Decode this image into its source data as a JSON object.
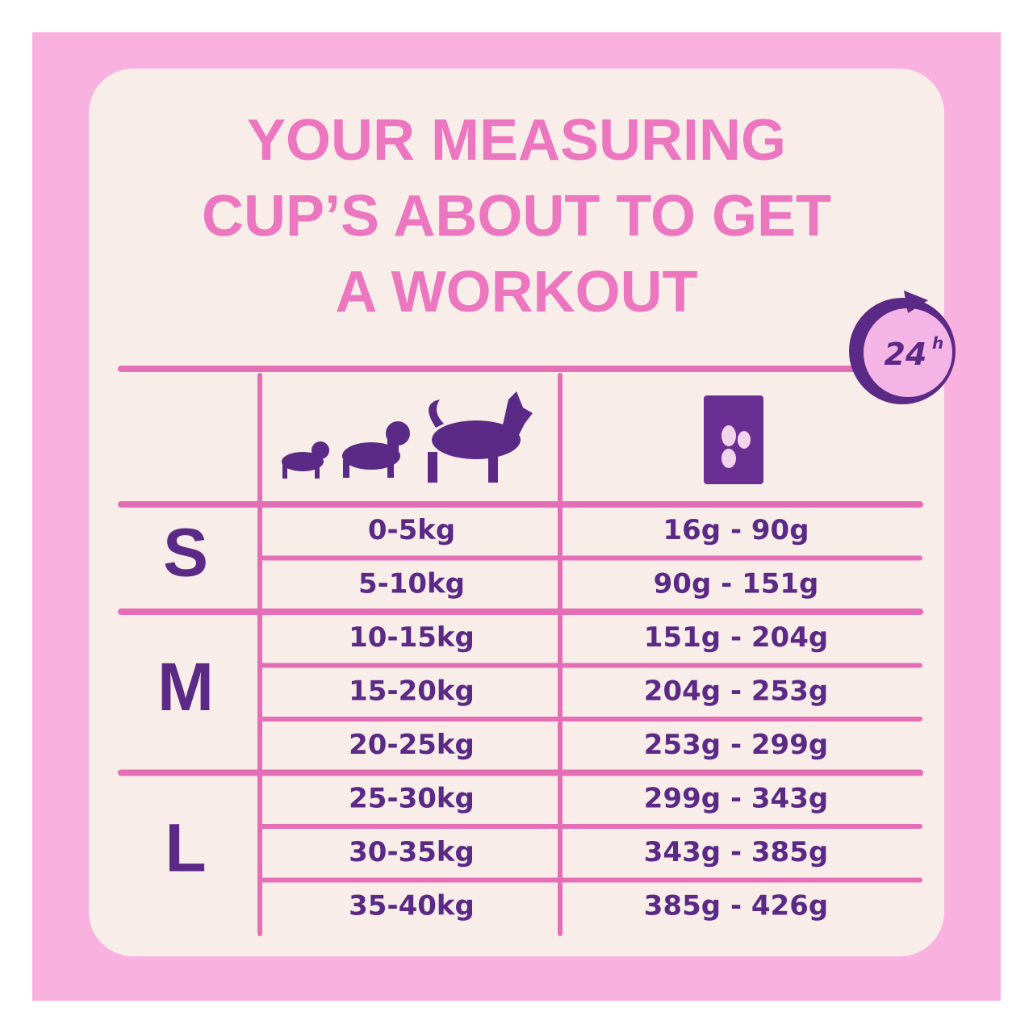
{
  "title_lines": [
    "YOUR MEASURING",
    "CUP’S ABOUT TO GET",
    "A WORKOUT"
  ],
  "badge": {
    "number": "24",
    "unit": "h"
  },
  "groups": [
    {
      "size": "S",
      "rows": [
        [
          "0-5kg",
          "16g - 90g"
        ],
        [
          "5-10kg",
          "90g - 151g"
        ]
      ]
    },
    {
      "size": "M",
      "rows": [
        [
          "10-15kg",
          "151g - 204g"
        ],
        [
          "15-20kg",
          "204g - 253g"
        ],
        [
          "20-25kg",
          "253g - 299g"
        ]
      ]
    },
    {
      "size": "L",
      "rows": [
        [
          "25-30kg",
          "299g - 343g"
        ],
        [
          "30-35kg",
          "343g - 385g"
        ],
        [
          "35-40kg",
          "385g - 426g"
        ]
      ]
    }
  ]
}
